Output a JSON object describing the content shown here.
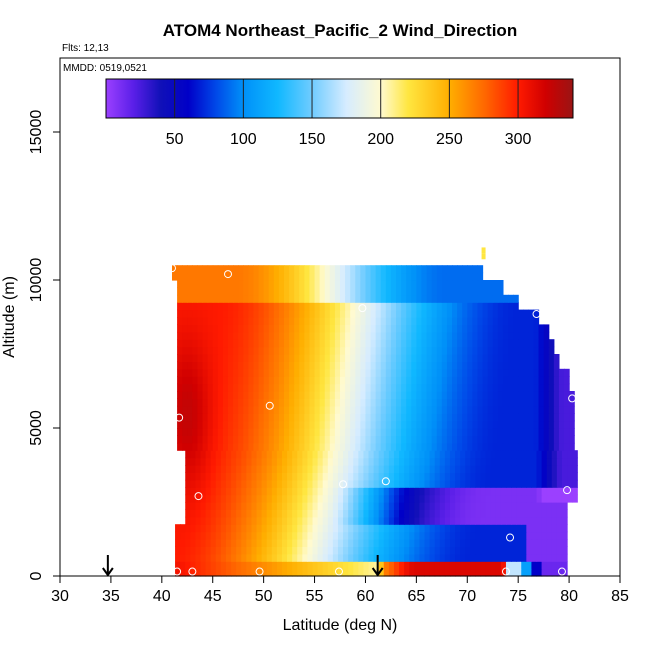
{
  "chart_data": {
    "type": "heatmap",
    "title": "ATOM4 Northeast_Pacific_2 Wind_Direction",
    "flights_label": "Flts: 12,13",
    "mmdd_label": "MMDD: 0519,0521",
    "xlabel": "Latitude (deg N)",
    "ylabel": "Altitude (m)",
    "xlim": [
      30,
      85
    ],
    "ylim": [
      0,
      17500
    ],
    "x_ticks": [
      30,
      35,
      40,
      45,
      50,
      55,
      60,
      65,
      70,
      75,
      80,
      85
    ],
    "y_ticks": [
      0,
      5000,
      10000,
      15000
    ],
    "colorbar": {
      "range": [
        0,
        340
      ],
      "ticks": [
        50,
        100,
        150,
        200,
        250,
        300
      ],
      "stops": [
        {
          "v": 0,
          "c": "#9b40ff"
        },
        {
          "v": 20,
          "c": "#5a1fe8"
        },
        {
          "v": 40,
          "c": "#1010b8"
        },
        {
          "v": 60,
          "c": "#0000c8"
        },
        {
          "v": 80,
          "c": "#0048e8"
        },
        {
          "v": 100,
          "c": "#0090f8"
        },
        {
          "v": 125,
          "c": "#10b8ff"
        },
        {
          "v": 150,
          "c": "#70ccff"
        },
        {
          "v": 175,
          "c": "#d6ecff"
        },
        {
          "v": 200,
          "c": "#fffad0"
        },
        {
          "v": 220,
          "c": "#ffe640"
        },
        {
          "v": 250,
          "c": "#ffae00"
        },
        {
          "v": 275,
          "c": "#ff6a00"
        },
        {
          "v": 300,
          "c": "#ff1a00"
        },
        {
          "v": 320,
          "c": "#d00000"
        },
        {
          "v": 340,
          "c": "#9a1414"
        }
      ]
    },
    "arrows_at_latitude": [
      34.7,
      61.2
    ],
    "profile_markers": [
      {
        "x": 41.0,
        "y": 10400
      },
      {
        "x": 46.5,
        "y": 10200
      },
      {
        "x": 59.7,
        "y": 9050
      },
      {
        "x": 76.8,
        "y": 8850
      },
      {
        "x": 41.7,
        "y": 5350
      },
      {
        "x": 50.6,
        "y": 5750
      },
      {
        "x": 80.3,
        "y": 6000
      },
      {
        "x": 57.8,
        "y": 3100
      },
      {
        "x": 62.0,
        "y": 3200
      },
      {
        "x": 43.6,
        "y": 2700
      },
      {
        "x": 79.8,
        "y": 2900
      },
      {
        "x": 74.2,
        "y": 1300
      },
      {
        "x": 41.5,
        "y": 150
      },
      {
        "x": 43.0,
        "y": 150
      },
      {
        "x": 49.6,
        "y": 150
      },
      {
        "x": 57.4,
        "y": 150
      },
      {
        "x": 73.8,
        "y": 150
      },
      {
        "x": 79.3,
        "y": 150
      }
    ]
  }
}
